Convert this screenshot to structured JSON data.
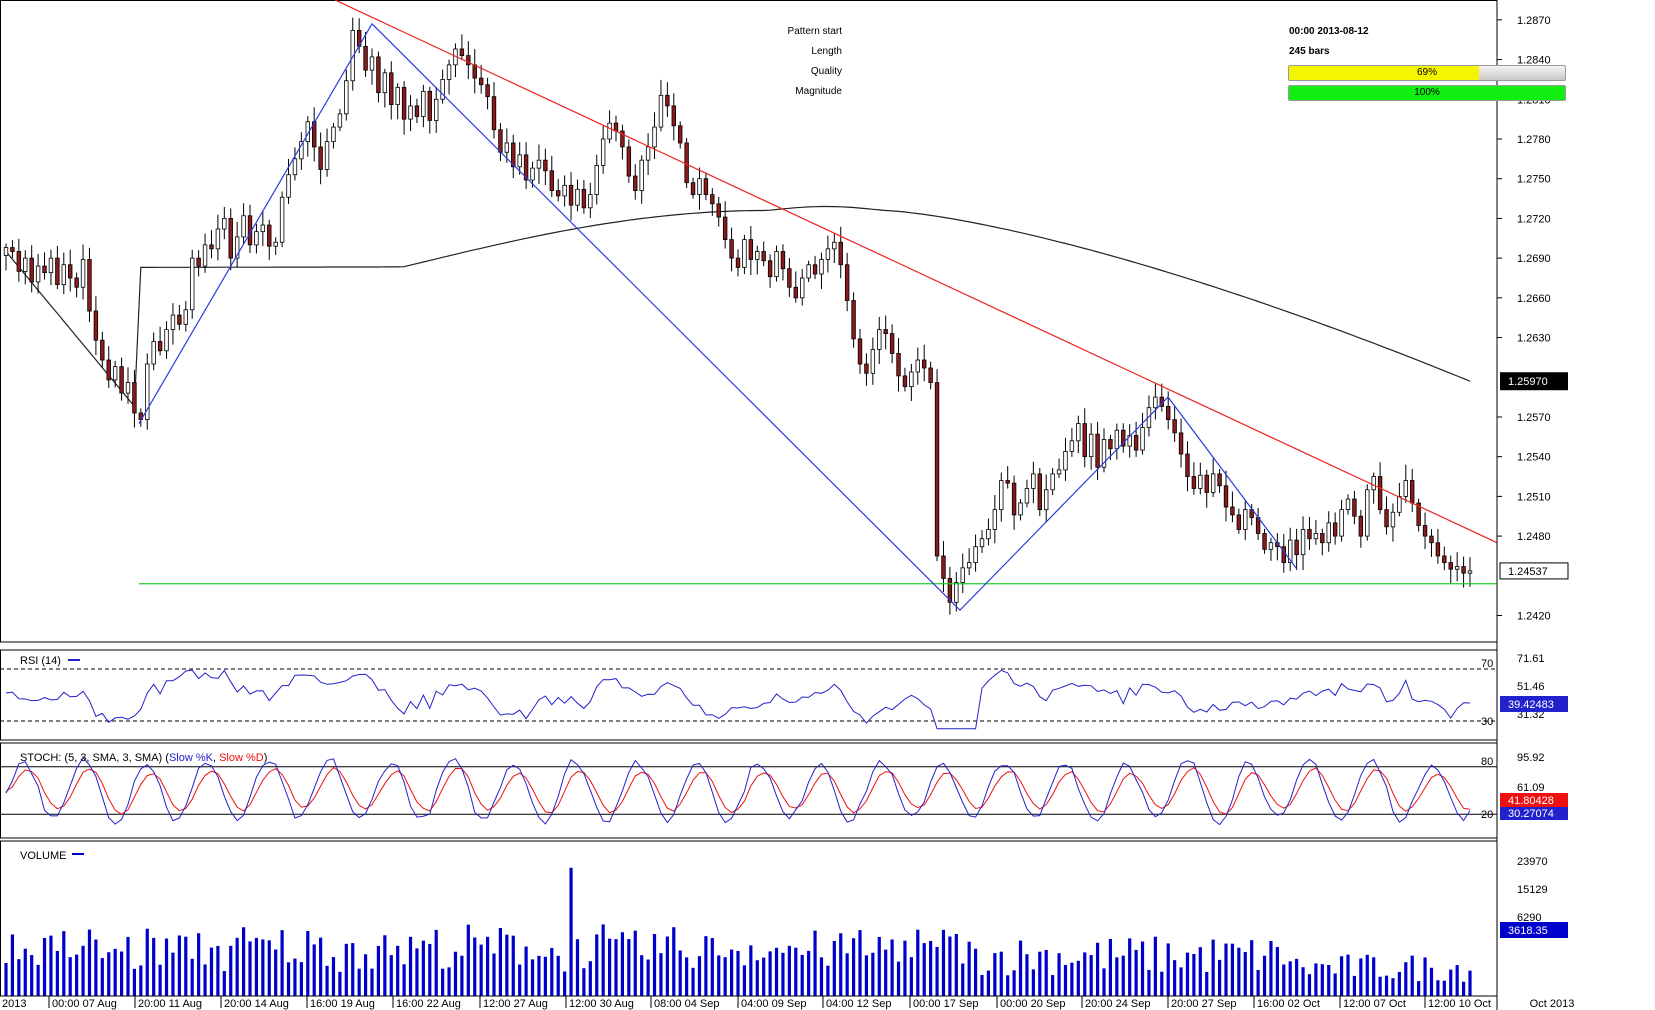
{
  "chart_data": {
    "type": "candlestick",
    "instrument_note": "",
    "price_axis": {
      "ticks": [
        "1.2870",
        "1.2840",
        "1.2810",
        "1.2780",
        "1.2750",
        "1.2720",
        "1.2690",
        "1.2660",
        "1.2630",
        "1.2570",
        "1.2540",
        "1.2510",
        "1.2480",
        "1.2420"
      ],
      "range": [
        1.24,
        1.2885
      ],
      "current_ma_label": "1.25970",
      "current_price_label": "1.24537"
    },
    "time_axis": {
      "labels": [
        "2013",
        "00:00 07 Aug",
        "20:00 11 Aug",
        "20:00 14 Aug",
        "16:00 19 Aug",
        "16:00 22 Aug",
        "12:00 27 Aug",
        "12:00 30 Aug",
        "08:00 04 Sep",
        "04:00 09 Sep",
        "04:00 12 Sep",
        "00:00 17 Sep",
        "00:00 20 Sep",
        "20:00 24 Sep",
        "20:00 27 Sep",
        "16:00 02 Oct",
        "12:00 07 Oct",
        "12:00 10 Oct"
      ],
      "corner_label": "Oct 2013"
    },
    "candles_close": [
      1.2698,
      1.2695,
      1.268,
      1.269,
      1.2672,
      1.2684,
      1.2679,
      1.269,
      1.267,
      1.2685,
      1.2675,
      1.2668,
      1.2689,
      1.265,
      1.2628,
      1.2613,
      1.2598,
      1.2608,
      1.2588,
      1.2596,
      1.2573,
      1.2568,
      1.261,
      1.2627,
      1.262,
      1.2636,
      1.2647,
      1.264,
      1.2651,
      1.269,
      1.2684,
      1.27,
      1.2697,
      1.2712,
      1.272,
      1.269,
      1.2706,
      1.2722,
      1.27,
      1.271,
      1.2715,
      1.2699,
      1.2702,
      1.2736,
      1.2753,
      1.2765,
      1.2778,
      1.2793,
      1.2774,
      1.2757,
      1.2778,
      1.2789,
      1.2799,
      1.2824,
      1.2862,
      1.285,
      1.2832,
      1.2842,
      1.2815,
      1.283,
      1.2806,
      1.2819,
      1.2795,
      1.2805,
      1.2797,
      1.2816,
      1.2794,
      1.281,
      1.2825,
      1.2836,
      1.2848,
      1.2843,
      1.2836,
      1.2826,
      1.2821,
      1.2812,
      1.2787,
      1.277,
      1.2777,
      1.2759,
      1.2768,
      1.2749,
      1.2758,
      1.2764,
      1.2756,
      1.2741,
      1.2737,
      1.2745,
      1.273,
      1.2742,
      1.2728,
      1.2738,
      1.276,
      1.278,
      1.2792,
      1.2786,
      1.2774,
      1.2752,
      1.2741,
      1.2764,
      1.2774,
      1.2789,
      1.2813,
      1.2805,
      1.279,
      1.2777,
      1.2747,
      1.2738,
      1.275,
      1.2738,
      1.2731,
      1.2721,
      1.2704,
      1.269,
      1.2683,
      1.2704,
      1.2689,
      1.2695,
      1.2688,
      1.2676,
      1.2695,
      1.2682,
      1.2668,
      1.266,
      1.2675,
      1.2685,
      1.2678,
      1.2689,
      1.2697,
      1.2702,
      1.2685,
      1.2658,
      1.2629,
      1.261,
      1.2603,
      1.2621,
      1.2636,
      1.2633,
      1.2618,
      1.2601,
      1.2593,
      1.2604,
      1.2613,
      1.2607,
      1.2596,
      1.2465,
      1.2448,
      1.243,
      1.2445,
      1.2456,
      1.246,
      1.2472,
      1.2478,
      1.2485,
      1.25,
      1.2522,
      1.252,
      1.2496,
      1.2505,
      1.2516,
      1.2527,
      1.25,
      1.2515,
      1.2527,
      1.253,
      1.2544,
      1.2552,
      1.2565,
      1.254,
      1.2557,
      1.2532,
      1.2553,
      1.2546,
      1.256,
      1.2548,
      1.2556,
      1.2545,
      1.2562,
      1.2577,
      1.2585,
      1.2578,
      1.2568,
      1.2558,
      1.2542,
      1.2525,
      1.2516,
      1.2526,
      1.2513,
      1.2527,
      1.2518,
      1.2502,
      1.2496,
      1.2485,
      1.25,
      1.2494,
      1.2482,
      1.247,
      1.2475,
      1.2472,
      1.246,
      1.2477,
      1.2466,
      1.2485,
      1.2478,
      1.2482,
      1.2475,
      1.249,
      1.248,
      1.25,
      1.2508,
      1.2495,
      1.248,
      1.2515,
      1.2525,
      1.25,
      1.2487,
      1.2498,
      1.251,
      1.2522,
      1.2505,
      1.2488,
      1.248,
      1.2475,
      1.2465,
      1.246,
      1.2455,
      1.2457,
      1.2452,
      1.24537
    ],
    "moving_average_endpoint": 1.2597,
    "zigzag_points": [
      [
        0.139,
        1.2565
      ],
      [
        0.372,
        1.2867
      ],
      [
        0.96,
        1.2424
      ],
      [
        1.168,
        1.2585
      ],
      [
        1.297,
        1.2455
      ]
    ],
    "trendline_red": [
      [
        0.335,
        1.2885
      ],
      [
        1.497,
        1.2475
      ]
    ],
    "support_line_green": 1.2444,
    "pattern_info": {
      "pattern_start_label": "Pattern start",
      "pattern_start_value": "00:00 2013-08-12",
      "length_label": "Length",
      "length_value": "245 bars",
      "quality_label": "Quality",
      "quality_value": "69%",
      "quality_fraction": 0.69,
      "magnitude_label": "Magnitude",
      "magnitude_value": "100%",
      "magnitude_fraction": 1.0
    },
    "rsi": {
      "label": "RSI (14)",
      "ticks": [
        "71.61",
        "51.46",
        "31.32"
      ],
      "level_labels": [
        "70",
        "30"
      ],
      "value_label": "39.42483",
      "color": "#2222cc"
    },
    "stoch": {
      "label_prefix": "STOCH: (5, 3, SMA, 3, SMA)",
      "k_label": "Slow %K",
      "d_label": "Slow %D",
      "ticks": [
        "95.92",
        "61.09"
      ],
      "level_labels": [
        "80",
        "20"
      ],
      "k_value_label": "30.27074",
      "d_value_label": "41.80428",
      "k_color": "#2222cc",
      "d_color": "#ee1111"
    },
    "volume": {
      "label": "VOLUME",
      "ticks": [
        "23970",
        "15129",
        "6290"
      ],
      "value_label": "3618.35",
      "color": "#0000cc"
    },
    "colors": {
      "bull_candle": "#ffffff",
      "bear_candle": "#8b1a1a",
      "zigzag": "#2b3bdf",
      "trendline": "#ee2222",
      "support": "#22cc22",
      "moving_average": "#222222",
      "quality_bar": "#f5f500",
      "magnitude_bar": "#11ee11"
    }
  }
}
